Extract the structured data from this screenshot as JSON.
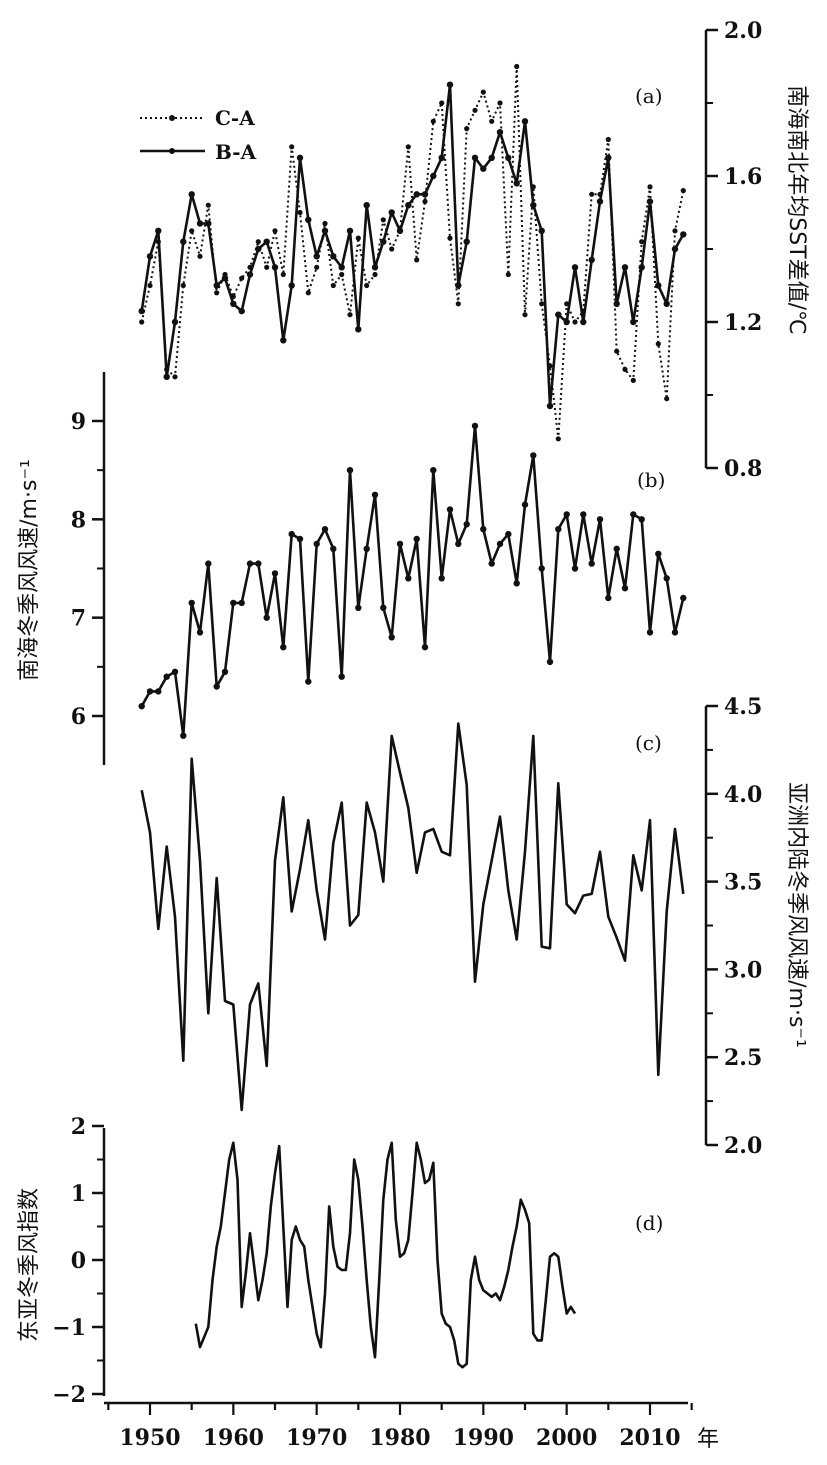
{
  "chart_data": [
    {
      "panel": "(a)",
      "type": "line",
      "ylabel": "南海南北年均SST差值/℃",
      "ylim": [
        0.8,
        2.0
      ],
      "yticks": [
        "0.8",
        "1.2",
        "1.6",
        "2.0"
      ],
      "legend": {
        "placement": "top-left"
      },
      "series": [
        {
          "name": "C-A",
          "style": "dotted",
          "x": [
            1949,
            1950,
            1951,
            1952,
            1953,
            1954,
            1955,
            1956,
            1957,
            1958,
            1959,
            1960,
            1961,
            1962,
            1963,
            1964,
            1965,
            1966,
            1967,
            1968,
            1969,
            1970,
            1971,
            1972,
            1973,
            1974,
            1975,
            1976,
            1977,
            1978,
            1979,
            1980,
            1981,
            1982,
            1983,
            1984,
            1985,
            1986,
            1987,
            1988,
            1989,
            1990,
            1991,
            1992,
            1993,
            1994,
            1995,
            1996,
            1997,
            1998,
            1999,
            2000,
            2001,
            2002,
            2003,
            2004,
            2005,
            2006,
            2007,
            2008,
            2009,
            2010,
            2011,
            2012,
            2013,
            2014
          ],
          "values": [
            1.2,
            1.3,
            1.42,
            1.07,
            1.05,
            1.3,
            1.45,
            1.38,
            1.52,
            1.28,
            1.33,
            1.27,
            1.32,
            1.35,
            1.42,
            1.35,
            1.45,
            1.33,
            1.68,
            1.5,
            1.28,
            1.35,
            1.47,
            1.3,
            1.33,
            1.22,
            1.43,
            1.3,
            1.33,
            1.48,
            1.4,
            1.45,
            1.68,
            1.37,
            1.53,
            1.75,
            1.8,
            1.43,
            1.25,
            1.73,
            1.78,
            1.83,
            1.75,
            1.8,
            1.33,
            1.9,
            1.22,
            1.57,
            1.25,
            1.08,
            0.88,
            1.25,
            1.2,
            1.23,
            1.55,
            1.55,
            1.7,
            1.12,
            1.07,
            1.04,
            1.42,
            1.57,
            1.14,
            0.99,
            1.45,
            1.56
          ]
        },
        {
          "name": "B-A",
          "style": "solid",
          "x": [
            1949,
            1950,
            1951,
            1952,
            1953,
            1954,
            1955,
            1956,
            1957,
            1958,
            1959,
            1960,
            1961,
            1962,
            1963,
            1964,
            1965,
            1966,
            1967,
            1968,
            1969,
            1970,
            1971,
            1972,
            1973,
            1974,
            1975,
            1976,
            1977,
            1978,
            1979,
            1980,
            1981,
            1982,
            1983,
            1984,
            1985,
            1986,
            1987,
            1988,
            1989,
            1990,
            1991,
            1992,
            1993,
            1994,
            1995,
            1996,
            1997,
            1998,
            1999,
            2000,
            2001,
            2002,
            2003,
            2004,
            2005,
            2006,
            2007,
            2008,
            2009,
            2010,
            2011,
            2012,
            2013,
            2014
          ],
          "values": [
            1.23,
            1.38,
            1.45,
            1.05,
            1.2,
            1.42,
            1.55,
            1.47,
            1.47,
            1.3,
            1.32,
            1.25,
            1.23,
            1.33,
            1.4,
            1.42,
            1.35,
            1.15,
            1.3,
            1.65,
            1.48,
            1.38,
            1.45,
            1.38,
            1.35,
            1.45,
            1.18,
            1.52,
            1.35,
            1.42,
            1.5,
            1.45,
            1.52,
            1.55,
            1.55,
            1.6,
            1.65,
            1.85,
            1.3,
            1.42,
            1.65,
            1.62,
            1.65,
            1.72,
            1.65,
            1.58,
            1.75,
            1.52,
            1.45,
            0.97,
            1.22,
            1.2,
            1.35,
            1.2,
            1.37,
            1.53,
            1.65,
            1.25,
            1.35,
            1.2,
            1.35,
            1.53,
            1.3,
            1.25,
            1.4,
            1.44
          ]
        }
      ]
    },
    {
      "panel": "(b)",
      "type": "line",
      "ylabel": "南海冬季风风速/m·s⁻¹",
      "ylim": [
        5.5,
        9.5
      ],
      "yticks": [
        "6",
        "7",
        "8",
        "9"
      ],
      "series": [
        {
          "style": "solid-markers",
          "x": [
            1949,
            1950,
            1951,
            1952,
            1953,
            1954,
            1955,
            1956,
            1957,
            1958,
            1959,
            1960,
            1961,
            1962,
            1963,
            1964,
            1965,
            1966,
            1967,
            1968,
            1969,
            1970,
            1971,
            1972,
            1973,
            1974,
            1975,
            1976,
            1977,
            1978,
            1979,
            1980,
            1981,
            1982,
            1983,
            1984,
            1985,
            1986,
            1987,
            1988,
            1989,
            1990,
            1991,
            1992,
            1993,
            1994,
            1995,
            1996,
            1997,
            1998,
            1999,
            2000,
            2001,
            2002,
            2003,
            2004,
            2005,
            2006,
            2007,
            2008,
            2009,
            2010,
            2011,
            2012,
            2013,
            2014
          ],
          "values": [
            6.1,
            6.25,
            6.25,
            6.4,
            6.45,
            5.8,
            7.15,
            6.85,
            7.55,
            6.3,
            6.45,
            7.15,
            7.15,
            7.55,
            7.55,
            7.0,
            7.45,
            6.7,
            7.85,
            7.8,
            6.35,
            7.75,
            7.9,
            7.7,
            6.4,
            8.5,
            7.1,
            7.7,
            8.25,
            7.1,
            6.8,
            7.75,
            7.4,
            7.8,
            6.7,
            8.5,
            7.4,
            8.1,
            7.75,
            7.95,
            8.95,
            7.9,
            7.55,
            7.75,
            7.85,
            7.35,
            8.15,
            8.65,
            7.5,
            6.55,
            7.9,
            8.05,
            7.5,
            8.05,
            7.55,
            8.0,
            7.2,
            7.7,
            7.3,
            8.05,
            8.0,
            6.85,
            7.65,
            7.4,
            6.85,
            7.2
          ]
        }
      ]
    },
    {
      "panel": "(c)",
      "type": "line",
      "ylabel": "亚洲内陆冬季风风速/m·s⁻¹",
      "ylim": [
        2.0,
        4.5
      ],
      "yticks": [
        "2.0",
        "2.5",
        "3.0",
        "3.5",
        "4.0",
        "4.5"
      ],
      "series": [
        {
          "style": "solid",
          "x": [
            1949,
            1950,
            1951,
            1952,
            1953,
            1954,
            1955,
            1956,
            1957,
            1958,
            1959,
            1960,
            1961,
            1962,
            1963,
            1964,
            1965,
            1966,
            1967,
            1968,
            1969,
            1970,
            1971,
            1972,
            1973,
            1974,
            1975,
            1976,
            1977,
            1978,
            1979,
            1980,
            1981,
            1982,
            1983,
            1984,
            1985,
            1986,
            1987,
            1988,
            1989,
            1990,
            1991,
            1992,
            1993,
            1994,
            1995,
            1996,
            1997,
            1998,
            1999,
            2000,
            2001,
            2002,
            2003,
            2004,
            2005,
            2006,
            2007,
            2008,
            2009,
            2010,
            2011,
            2012,
            2013,
            2014
          ],
          "values": [
            4.02,
            3.78,
            3.23,
            3.7,
            3.3,
            2.48,
            4.2,
            3.62,
            2.75,
            3.52,
            2.82,
            2.8,
            2.2,
            2.8,
            2.92,
            2.45,
            3.62,
            3.98,
            3.33,
            3.57,
            3.85,
            3.45,
            3.17,
            3.72,
            3.95,
            3.25,
            3.31,
            3.95,
            3.78,
            3.5,
            4.33,
            4.12,
            3.92,
            3.55,
            3.78,
            3.8,
            3.67,
            3.65,
            4.4,
            4.05,
            2.93,
            3.37,
            3.62,
            3.87,
            3.45,
            3.17,
            3.67,
            4.33,
            3.13,
            3.12,
            4.06,
            3.37,
            3.32,
            3.42,
            3.43,
            3.67,
            3.3,
            3.18,
            3.05,
            3.65,
            3.45,
            3.85,
            2.4,
            3.33,
            3.8,
            3.43
          ]
        }
      ]
    },
    {
      "panel": "(d)",
      "type": "line",
      "ylabel": "东亚冬季风指数",
      "ylim": [
        -2,
        2
      ],
      "yticks": [
        "−2",
        "−1",
        "0",
        "1",
        "2"
      ],
      "series": [
        {
          "style": "solid",
          "x": [
            1955.5,
            1956,
            1957,
            1957.5,
            1958,
            1958.5,
            1959,
            1959.5,
            1960,
            1960.5,
            1961,
            1961.5,
            1962,
            1962.5,
            1963,
            1963.5,
            1964,
            1964.5,
            1965,
            1965.5,
            1966,
            1966.5,
            1967,
            1967.5,
            1968,
            1968.5,
            1969,
            1969.5,
            1970,
            1970.5,
            1971,
            1971.5,
            1972,
            1972.5,
            1973,
            1973.5,
            1974,
            1974.5,
            1975,
            1975.5,
            1976,
            1976.5,
            1977,
            1977.5,
            1978,
            1978.5,
            1979,
            1979.5,
            1980,
            1980.5,
            1981,
            1981.5,
            1982,
            1982.5,
            1983,
            1983.5,
            1984,
            1984.5,
            1985,
            1985.5,
            1986,
            1986.5,
            1987,
            1987.5,
            1988,
            1988.5,
            1989,
            1989.5,
            1990,
            1990.5,
            1991,
            1991.5,
            1992,
            1992.5,
            1993,
            1993.5,
            1994,
            1994.5,
            1995,
            1995.5,
            1996,
            1996.5,
            1997,
            1997.5,
            1998,
            1998.5,
            1999,
            1999.5,
            2000,
            2000.5,
            2001
          ],
          "values": [
            -0.95,
            -1.3,
            -1.0,
            -0.3,
            0.2,
            0.5,
            1.0,
            1.5,
            1.75,
            1.2,
            -0.7,
            -0.2,
            0.4,
            -0.1,
            -0.6,
            -0.3,
            0.1,
            0.8,
            1.3,
            1.7,
            0.5,
            -0.7,
            0.3,
            0.5,
            0.3,
            0.2,
            -0.3,
            -0.7,
            -1.1,
            -1.3,
            -0.5,
            0.8,
            0.2,
            -0.1,
            -0.15,
            -0.15,
            0.4,
            1.5,
            1.2,
            0.5,
            -0.3,
            -1.0,
            -1.45,
            -0.3,
            0.9,
            1.5,
            1.75,
            0.6,
            0.05,
            0.1,
            0.3,
            1.0,
            1.75,
            1.5,
            1.15,
            1.2,
            1.45,
            0.0,
            -0.8,
            -0.95,
            -1.0,
            -1.2,
            -1.55,
            -1.6,
            -1.55,
            -0.3,
            0.05,
            -0.3,
            -0.45,
            -0.5,
            -0.55,
            -0.5,
            -0.6,
            -0.4,
            -0.15,
            0.2,
            0.5,
            0.9,
            0.75,
            0.55,
            -1.1,
            -1.2,
            -1.2,
            -0.6,
            0.05,
            0.1,
            0.05,
            -0.4,
            -0.8,
            -0.7,
            -0.8
          ]
        }
      ]
    }
  ],
  "x_axis": {
    "ticks": [
      1950,
      1960,
      1970,
      1980,
      1990,
      2000,
      2010
    ],
    "unit_label": "年"
  },
  "labels": {
    "a": "(a)",
    "b": "(b)",
    "c": "(c)",
    "d": "(d)",
    "legend_ca": "C-A",
    "legend_ba": "B-A"
  }
}
